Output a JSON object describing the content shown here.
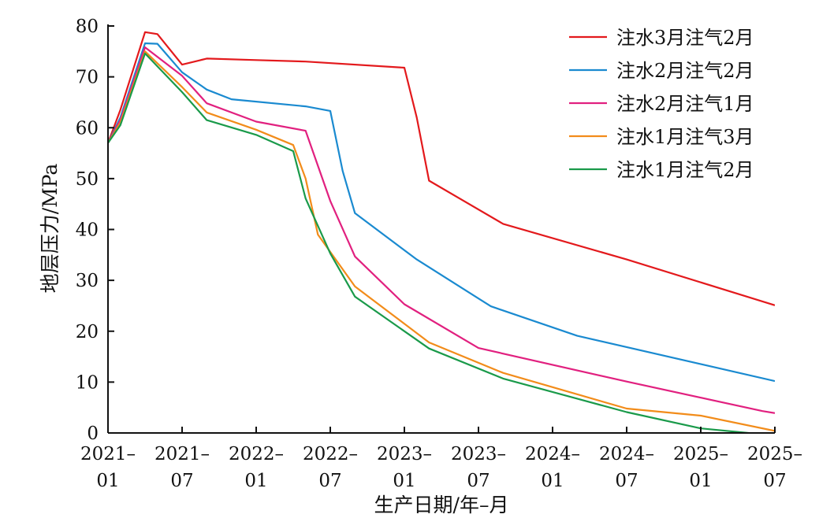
{
  "chart_data": {
    "type": "line",
    "title": "",
    "xlabel": "生产日期/年–月",
    "ylabel": "地层压力/MPa",
    "ylim": [
      0,
      80
    ],
    "yticks": [
      0,
      10,
      20,
      30,
      40,
      50,
      60,
      70,
      80
    ],
    "x_start": "2021-01",
    "x_end": "2025-07",
    "xticks": [
      {
        "year": "2021–",
        "month": "01"
      },
      {
        "year": "2021–",
        "month": "07"
      },
      {
        "year": "2022–",
        "month": "01"
      },
      {
        "year": "2022–",
        "month": "07"
      },
      {
        "year": "2023–",
        "month": "01"
      },
      {
        "year": "2023–",
        "month": "07"
      },
      {
        "year": "2024–",
        "month": "01"
      },
      {
        "year": "2024–",
        "month": "07"
      },
      {
        "year": "2025–",
        "month": "01"
      },
      {
        "year": "2025–",
        "month": "07"
      }
    ],
    "grid": false,
    "legend_position": "top-right",
    "series": [
      {
        "name": "注水3月注气2月",
        "color": "#e3191c",
        "points": [
          [
            "2021-01",
            57
          ],
          [
            "2021-02",
            63.5
          ],
          [
            "2021-04",
            78.8
          ],
          [
            "2021-05",
            78.4
          ],
          [
            "2021-07",
            72.4
          ],
          [
            "2021-09",
            73.6
          ],
          [
            "2022-01",
            73.3
          ],
          [
            "2022-05",
            73.0
          ],
          [
            "2023-01",
            71.8
          ],
          [
            "2023-02",
            62
          ],
          [
            "2023-03",
            49.6
          ],
          [
            "2023-09",
            41.1
          ],
          [
            "2024-07",
            34.1
          ],
          [
            "2025-07",
            25.1
          ]
        ]
      },
      {
        "name": "注水2月注气2月",
        "color": "#1a8ad0",
        "points": [
          [
            "2021-01",
            57
          ],
          [
            "2021-02",
            62
          ],
          [
            "2021-04",
            76.6
          ],
          [
            "2021-05",
            76.5
          ],
          [
            "2021-07",
            70.9
          ],
          [
            "2021-09",
            67.5
          ],
          [
            "2021-11",
            65.6
          ],
          [
            "2022-05",
            64.2
          ],
          [
            "2022-07",
            63.3
          ],
          [
            "2022-08",
            51.5
          ],
          [
            "2022-09",
            43.2
          ],
          [
            "2023-02",
            34.1
          ],
          [
            "2023-08",
            24.9
          ],
          [
            "2024-03",
            19.1
          ],
          [
            "2025-07",
            10.2
          ]
        ]
      },
      {
        "name": "注水2月注气1月",
        "color": "#e1207f",
        "points": [
          [
            "2021-01",
            57
          ],
          [
            "2021-02",
            61.5
          ],
          [
            "2021-04",
            75.8
          ],
          [
            "2021-07",
            70.2
          ],
          [
            "2021-09",
            64.8
          ],
          [
            "2022-01",
            61.2
          ],
          [
            "2022-05",
            59.4
          ],
          [
            "2022-07",
            45.6
          ],
          [
            "2022-09",
            34.7
          ],
          [
            "2023-01",
            25.3
          ],
          [
            "2023-07",
            16.7
          ],
          [
            "2024-07",
            10.1
          ],
          [
            "2025-06",
            4.3
          ],
          [
            "2025-07",
            3.9
          ]
        ]
      },
      {
        "name": "注水1月注气3月",
        "color": "#f28c1a",
        "points": [
          [
            "2021-01",
            57
          ],
          [
            "2021-02",
            61
          ],
          [
            "2021-04",
            75.0
          ],
          [
            "2021-07",
            68.0
          ],
          [
            "2021-09",
            63.0
          ],
          [
            "2022-01",
            59.6
          ],
          [
            "2022-04",
            56.6
          ],
          [
            "2022-05",
            50
          ],
          [
            "2022-06",
            39
          ],
          [
            "2022-09",
            28.8
          ],
          [
            "2023-03",
            17.8
          ],
          [
            "2023-09",
            11.8
          ],
          [
            "2024-07",
            4.8
          ],
          [
            "2025-01",
            3.4
          ],
          [
            "2025-07",
            0.4
          ]
        ]
      },
      {
        "name": "注水1月注气2月",
        "color": "#1a9a4a",
        "points": [
          [
            "2021-01",
            57
          ],
          [
            "2021-02",
            60.5
          ],
          [
            "2021-04",
            74.6
          ],
          [
            "2021-07",
            67.0
          ],
          [
            "2021-09",
            61.5
          ],
          [
            "2022-01",
            58.6
          ],
          [
            "2022-04",
            55.4
          ],
          [
            "2022-05",
            46.1
          ],
          [
            "2022-07",
            35.3
          ],
          [
            "2022-09",
            26.8
          ],
          [
            "2023-03",
            16.6
          ],
          [
            "2023-09",
            10.7
          ],
          [
            "2024-07",
            4.1
          ],
          [
            "2025-01",
            0.9
          ],
          [
            "2025-07",
            -0.5
          ]
        ]
      }
    ]
  }
}
